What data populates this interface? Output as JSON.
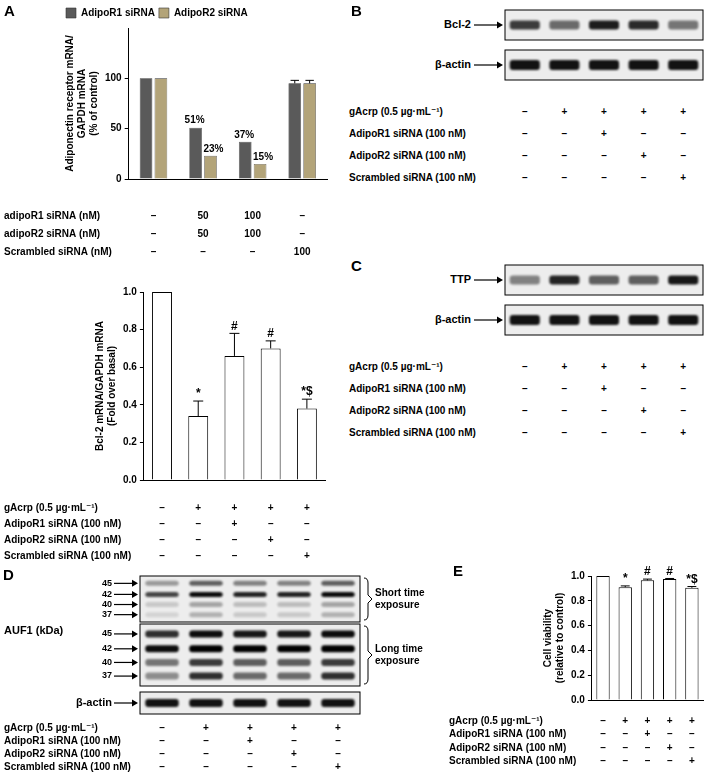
{
  "chart_data": [
    {
      "panel": "A",
      "type": "bar",
      "y_label": [
        "Adiponectin receptor mRNA/",
        "GAPDH mRNA",
        "(% of control)"
      ],
      "categories": [
        null,
        null,
        null,
        null
      ],
      "series": [
        {
          "name": "AdipoR1 siRNA",
          "color": "#5a5a5a",
          "values": [
            100,
            51,
            37,
            95
          ],
          "errors": [
            null,
            null,
            null,
            3
          ],
          "value_labels": [
            null,
            "51%",
            "37%",
            null
          ]
        },
        {
          "name": "AdipoR2 siRNA",
          "color": "#b3a479",
          "values": [
            100,
            23,
            15,
            95
          ],
          "errors": [
            null,
            null,
            null,
            3
          ],
          "value_labels": [
            null,
            "23%",
            "15%",
            null
          ]
        }
      ],
      "data_labels": true,
      "legend": "upper left",
      "grid": false,
      "ylim": [
        0,
        150
      ],
      "yticks": [
        0,
        50,
        100
      ],
      "conditions": [
        {
          "label": "adipoR1 siRNA (nM)",
          "marks": [
            "–",
            "50",
            "100",
            "–"
          ]
        },
        {
          "label": "adipoR2 siRNA (nM)",
          "marks": [
            "–",
            "50",
            "100",
            "–"
          ]
        },
        {
          "label": "Scrambled siRNA (nM)",
          "marks": [
            "–",
            "–",
            "–",
            "100"
          ]
        }
      ]
    },
    {
      "type": "bar",
      "y_label": [
        "Bcl-2 mRNA/GAPDH mRNA",
        "(Fold over basal)"
      ],
      "categories": [
        null,
        null,
        null,
        null,
        null
      ],
      "values": [
        1.0,
        0.34,
        0.66,
        0.7,
        0.38
      ],
      "errors": [
        null,
        0.08,
        0.12,
        0.04,
        0.05
      ],
      "annotations": [
        null,
        "*",
        "#",
        "#",
        "*$"
      ],
      "color": "#ffffff",
      "grid": false,
      "ylim": [
        0,
        1.0
      ],
      "yticks": [
        {
          "value": 0,
          "label": "0.0"
        },
        {
          "value": 0.2,
          "label": "0.2"
        },
        {
          "value": 0.4,
          "label": "0.4"
        },
        {
          "value": 0.6,
          "label": "0.6"
        },
        {
          "value": 0.8,
          "label": "0.8"
        },
        {
          "value": 1.0,
          "label": "1.0"
        }
      ],
      "conditions": [
        {
          "label": "gAcrp (0.5 µg·mL⁻¹)",
          "marks": [
            "–",
            "+",
            "+",
            "+",
            "+"
          ]
        },
        {
          "label": "AdipoR1 siRNA (100 nM)",
          "marks": [
            "–",
            "–",
            "+",
            "–",
            "–"
          ]
        },
        {
          "label": "AdipoR2 siRNA (100 nM)",
          "marks": [
            "–",
            "–",
            "–",
            "+",
            "–"
          ]
        },
        {
          "label": "Scrambled siRNA (100 nM)",
          "marks": [
            "–",
            "–",
            "–",
            "–",
            "+"
          ]
        }
      ]
    },
    {
      "panel": "E",
      "type": "bar",
      "y_label": [
        "Cell viability",
        "(relative to control)"
      ],
      "categories": [
        null,
        null,
        null,
        null,
        null
      ],
      "values": [
        1.0,
        0.91,
        0.965,
        0.975,
        0.905
      ],
      "errors": [
        null,
        0.01,
        0.01,
        0.005,
        0.01
      ],
      "annotations": [
        null,
        "*",
        "#",
        "#",
        "*$"
      ],
      "color": "#ffffff",
      "grid": false,
      "ylim": [
        0,
        1.0
      ],
      "yticks": [
        {
          "value": 0,
          "label": "0.0"
        },
        {
          "value": 0.2,
          "label": "0.2"
        },
        {
          "value": 0.4,
          "label": "0.4"
        },
        {
          "value": 0.6,
          "label": "0.6"
        },
        {
          "value": 0.8,
          "label": "0.8"
        },
        {
          "value": 1.0,
          "label": "1.0"
        }
      ],
      "conditions": [
        {
          "label": "gAcrp (0.5 µg·mL⁻¹)",
          "marks": [
            "–",
            "+",
            "+",
            "+",
            "+"
          ]
        },
        {
          "label": "AdipoR1 siRNA (100 nM)",
          "marks": [
            "–",
            "–",
            "+",
            "–",
            "–"
          ]
        },
        {
          "label": "AdipoR2 siRNA (100 nM)",
          "marks": [
            "–",
            "–",
            "–",
            "+",
            "–"
          ]
        },
        {
          "label": "Scrambled siRNA (100 nM)",
          "marks": [
            "–",
            "–",
            "–",
            "–",
            "+"
          ]
        }
      ]
    }
  ],
  "blots": [
    {
      "panel": "B",
      "rows": [
        {
          "label": "Bcl-2"
        },
        {
          "label": "β-actin"
        }
      ],
      "conditions": [
        {
          "label": "gAcrp (0.5 µg·mL⁻¹)",
          "marks": [
            "–",
            "+",
            "+",
            "+",
            "+"
          ]
        },
        {
          "label": "AdipoR1 siRNA (100 nM)",
          "marks": [
            "–",
            "–",
            "+",
            "–",
            "–"
          ]
        },
        {
          "label": "AdipoR2 siRNA (100 nM)",
          "marks": [
            "–",
            "–",
            "–",
            "+",
            "–"
          ]
        },
        {
          "label": "Scrambled siRNA (100 nM)",
          "marks": [
            "–",
            "–",
            "–",
            "–",
            "+"
          ]
        }
      ]
    },
    {
      "panel": "C",
      "rows": [
        {
          "label": "TTP"
        },
        {
          "label": "β-actin"
        }
      ],
      "conditions": [
        {
          "label": "gAcrp (0.5 µg·mL⁻¹)",
          "marks": [
            "–",
            "+",
            "+",
            "+",
            "+"
          ]
        },
        {
          "label": "AdipoR1 siRNA (100 nM)",
          "marks": [
            "–",
            "–",
            "+",
            "–",
            "–"
          ]
        },
        {
          "label": "AdipoR2 siRNA (100 nM)",
          "marks": [
            "–",
            "–",
            "–",
            "+",
            "–"
          ]
        },
        {
          "label": "Scrambled siRNA (100 nM)",
          "marks": [
            "–",
            "–",
            "–",
            "–",
            "+"
          ]
        }
      ]
    },
    {
      "panel": "D",
      "rows": [
        {
          "label": "AUF1 (kDa)",
          "markers": [
            45,
            42,
            40,
            37
          ],
          "exposures": [
            "Short time exposure",
            "Long time exposure"
          ]
        },
        {
          "label": "β-actin"
        }
      ],
      "conditions": [
        {
          "label": "gAcrp (0.5 µg·mL⁻¹)",
          "marks": [
            "–",
            "+",
            "+",
            "+",
            "+"
          ]
        },
        {
          "label": "AdipoR1 siRNA (100 nM)",
          "marks": [
            "–",
            "–",
            "+",
            "–",
            "–"
          ]
        },
        {
          "label": "AdipoR2 siRNA (100 nM)",
          "marks": [
            "–",
            "–",
            "–",
            "+",
            "–"
          ]
        },
        {
          "label": "Scrambled siRNA (100 nM)",
          "marks": [
            "–",
            "–",
            "–",
            "–",
            "+"
          ]
        }
      ]
    }
  ]
}
